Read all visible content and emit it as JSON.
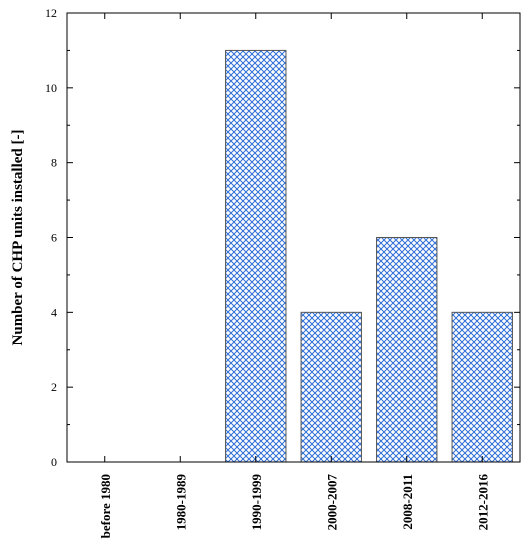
{
  "chart_data": {
    "type": "bar",
    "categories": [
      "before 1980",
      "1980-1989",
      "1990-1999",
      "2000-2007",
      "2008-2011",
      "2012-2016"
    ],
    "values": [
      0,
      0,
      11,
      4,
      6,
      4
    ],
    "title": "",
    "xlabel": "",
    "ylabel": "Number of CHP units installed [-]",
    "ylim": [
      0,
      12
    ],
    "yticks": [
      0,
      2,
      4,
      6,
      8,
      10,
      12
    ],
    "grid": false,
    "legend": "none",
    "bar_fill": "crosshatch",
    "bar_color": "#2f6fd6",
    "bar_edge_color": "#555555"
  }
}
